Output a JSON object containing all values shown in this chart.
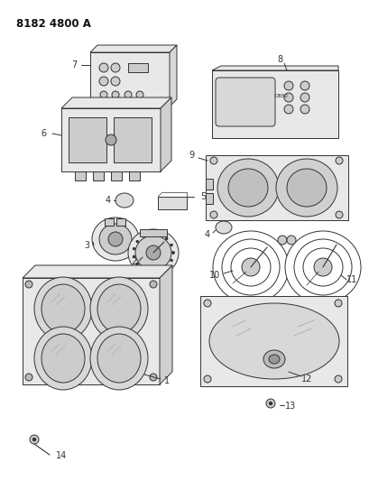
{
  "title": "8182 4800 A",
  "background_color": "#ffffff",
  "fig_width": 4.1,
  "fig_height": 5.33,
  "dpi": 100,
  "line_color": "#333333",
  "lw": 0.7
}
